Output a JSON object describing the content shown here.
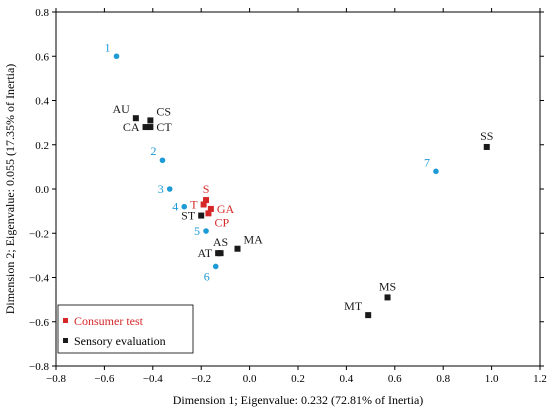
{
  "chart_data": {
    "type": "scatter",
    "xlabel": "Dimension 1; Eigenvalue: 0.232 (72.81% of Inertia)",
    "ylabel": "Dimension 2; Eigenvalue: 0.055 (17.35% of Inertia)",
    "xlim": [
      -0.8,
      1.2
    ],
    "ylim": [
      -0.8,
      0.8
    ],
    "xticks": [
      "-0.8",
      "-0.6",
      "-0.4",
      "-0.2",
      "0.0",
      "0.2",
      "0.4",
      "0.6",
      "0.8",
      "1.0",
      "1.2"
    ],
    "yticks": [
      "0.8",
      "0.6",
      "0.4",
      "0.2",
      "0.0",
      "-0.2",
      "-0.4",
      "-0.6",
      "-0.8"
    ],
    "grid": false,
    "legend_position": "bottom-left",
    "legend": [
      {
        "label": "Consumer test",
        "color": "#d62728"
      },
      {
        "label": "Sensory evaluation",
        "color": "#1a1a1a"
      }
    ],
    "series": [
      {
        "group": "consumers",
        "color": "#1e9ad6",
        "marker": "circle",
        "points": [
          {
            "label": "1",
            "x": -0.55,
            "y": 0.6,
            "anchor": "ul"
          },
          {
            "label": "2",
            "x": -0.36,
            "y": 0.13,
            "anchor": "ul"
          },
          {
            "label": "3",
            "x": -0.33,
            "y": 0.0,
            "anchor": "l"
          },
          {
            "label": "4",
            "x": -0.27,
            "y": -0.08,
            "anchor": "l"
          },
          {
            "label": "5",
            "x": -0.18,
            "y": -0.19,
            "anchor": "l"
          },
          {
            "label": "6",
            "x": -0.14,
            "y": -0.35,
            "anchor": "bl"
          },
          {
            "label": "7",
            "x": 0.77,
            "y": 0.08,
            "anchor": "ul"
          }
        ]
      },
      {
        "group": "Consumer test",
        "color": "#d62728",
        "marker": "square",
        "points": [
          {
            "label": "S",
            "x": -0.18,
            "y": -0.05,
            "anchor": "u"
          },
          {
            "label": "T",
            "x": -0.19,
            "y": -0.07,
            "anchor": "l"
          },
          {
            "label": "GA",
            "x": -0.16,
            "y": -0.09,
            "anchor": "r"
          },
          {
            "label": "CP",
            "x": -0.17,
            "y": -0.11,
            "anchor": "br"
          }
        ]
      },
      {
        "group": "Sensory evaluation",
        "color": "#1a1a1a",
        "marker": "square",
        "points": [
          {
            "label": "AU",
            "x": -0.47,
            "y": 0.32,
            "anchor": "ul"
          },
          {
            "label": "CS",
            "x": -0.41,
            "y": 0.31,
            "anchor": "ur"
          },
          {
            "label": "CA",
            "x": -0.43,
            "y": 0.28,
            "anchor": "l"
          },
          {
            "label": "CT",
            "x": -0.41,
            "y": 0.28,
            "anchor": "r"
          },
          {
            "label": "ST",
            "x": -0.2,
            "y": -0.12,
            "anchor": "l"
          },
          {
            "label": "AS",
            "x": -0.12,
            "y": -0.29,
            "anchor": "u"
          },
          {
            "label": "AT",
            "x": -0.13,
            "y": -0.29,
            "anchor": "l"
          },
          {
            "label": "MA",
            "x": -0.05,
            "y": -0.27,
            "anchor": "ur"
          },
          {
            "label": "SS",
            "x": 0.98,
            "y": 0.19,
            "anchor": "u"
          },
          {
            "label": "MS",
            "x": 0.57,
            "y": -0.49,
            "anchor": "u"
          },
          {
            "label": "MT",
            "x": 0.49,
            "y": -0.57,
            "anchor": "ul"
          }
        ]
      }
    ]
  }
}
